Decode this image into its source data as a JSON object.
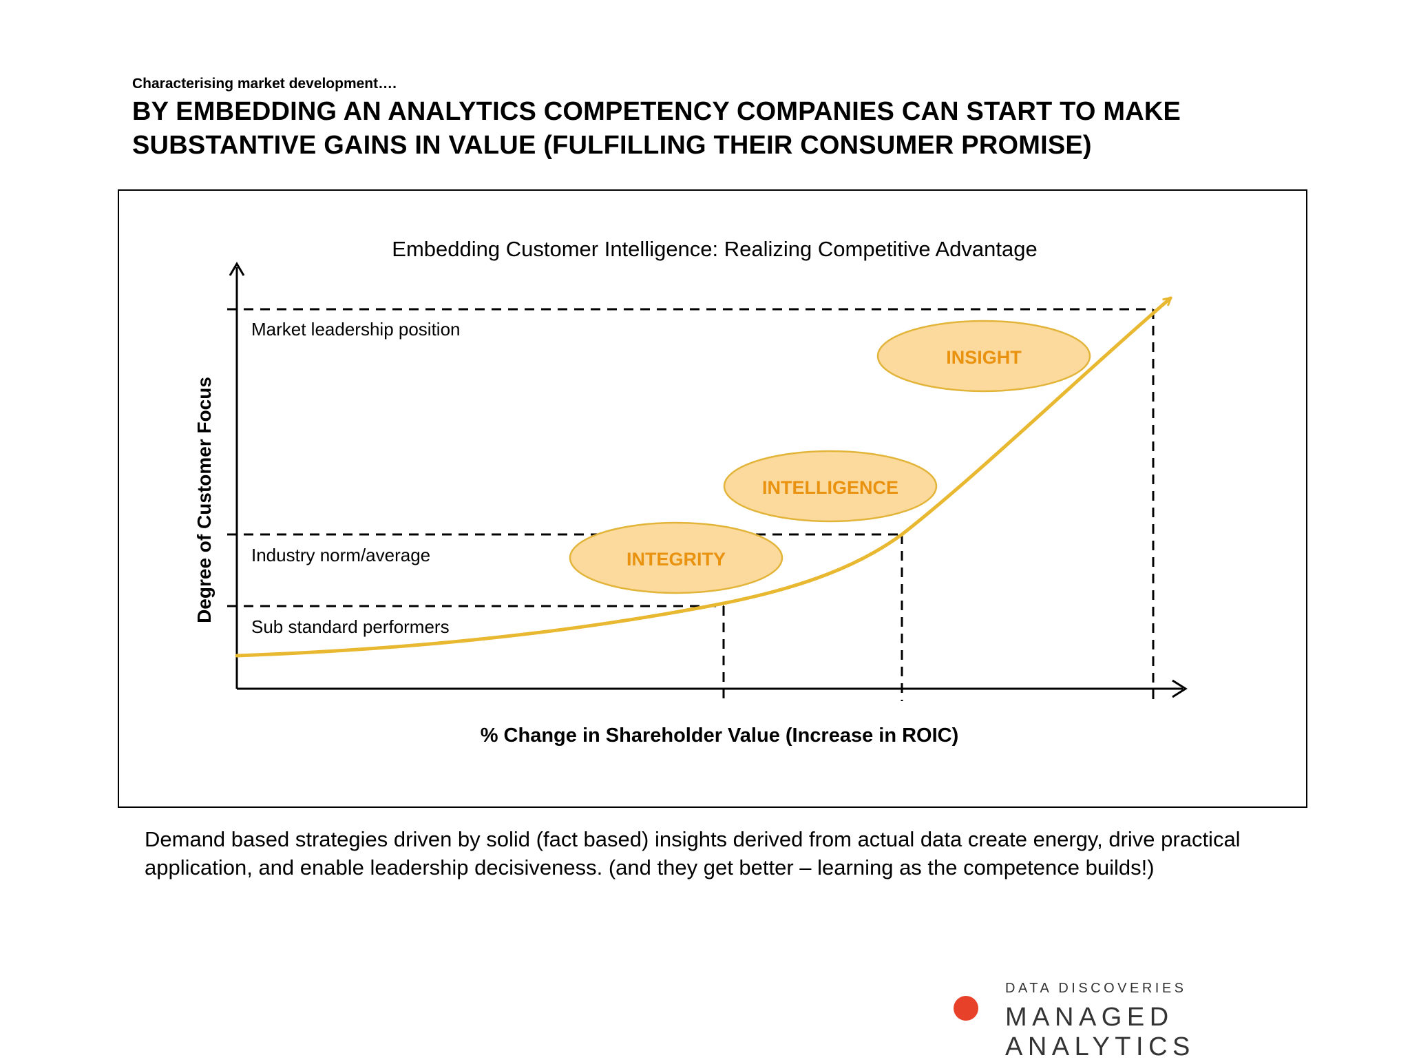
{
  "header": {
    "kicker": "Characterising market development….",
    "headline": "BY EMBEDDING AN ANALYTICS COMPETENCY COMPANIES CAN START TO MAKE SUBSTANTIVE GAINS IN VALUE (FULFILLING THEIR CONSUMER PROMISE)"
  },
  "diagram": {
    "title": "Embedding Customer Intelligence: Realizing Competitive Advantage",
    "y_axis_label": "Degree of Customer Focus",
    "x_axis_label": "% Change in Shareholder Value (Increase in ROIC)",
    "levels": [
      {
        "key": "leadership",
        "label": "Market leadership position"
      },
      {
        "key": "norm",
        "label": "Industry norm/average"
      },
      {
        "key": "substandard",
        "label": "Sub standard performers"
      }
    ],
    "stages": [
      {
        "key": "integrity",
        "label": "INTEGRITY"
      },
      {
        "key": "intelligence",
        "label": "INTELLIGENCE"
      },
      {
        "key": "insight",
        "label": "INSIGHT"
      }
    ],
    "colors": {
      "curve": "#e8b830",
      "stage_fill": "#fcd99c",
      "stage_stroke": "#e2b53a",
      "stage_text": "#e9920f"
    }
  },
  "body": {
    "text": "Demand based strategies driven by  solid (fact based) insights derived from actual data create energy, drive practical application, and enable leadership decisiveness. (and they get better – learning as the competence builds!)"
  },
  "brand": {
    "line1": "DATA DISCOVERIES",
    "line2": "MANAGED ANALYTICS",
    "dot_color": "#e8412a"
  }
}
